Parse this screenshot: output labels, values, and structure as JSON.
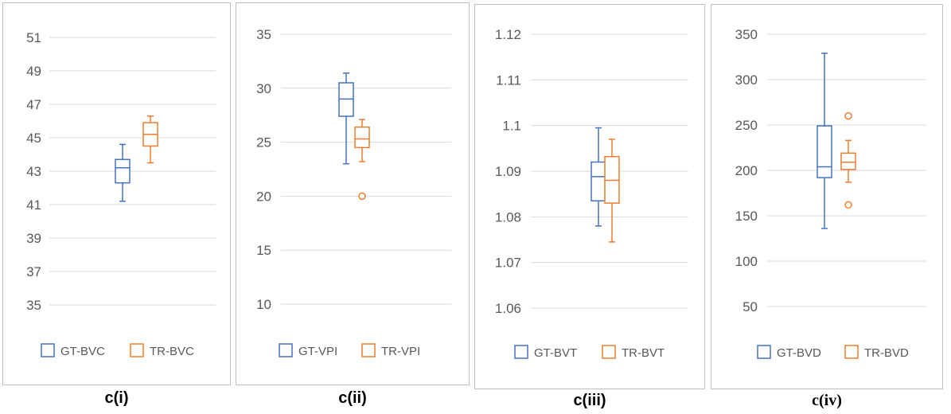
{
  "chart_data": [
    {
      "type": "box",
      "caption": "c(i)",
      "ylim": [
        35,
        51
      ],
      "yticks": [
        35,
        37,
        39,
        41,
        43,
        45,
        47,
        49,
        51
      ],
      "grid": true,
      "legend_position": "bottom",
      "series": [
        {
          "name": "GT-BVC",
          "color": "#4472c4",
          "min": 41.2,
          "q1": 42.3,
          "median": 43.2,
          "q3": 43.7,
          "max": 44.6,
          "outliers": []
        },
        {
          "name": "TR-BVC",
          "color": "#ed7d31",
          "min": 43.5,
          "q1": 44.5,
          "median": 45.2,
          "q3": 45.9,
          "max": 46.3,
          "outliers": []
        }
      ]
    },
    {
      "type": "box",
      "caption": "c(ii)",
      "ylim": [
        10,
        35
      ],
      "yticks": [
        10,
        15,
        20,
        25,
        30,
        35
      ],
      "grid": true,
      "legend_position": "bottom",
      "series": [
        {
          "name": "GT-VPI",
          "color": "#4472c4",
          "min": 23.0,
          "q1": 27.4,
          "median": 29.0,
          "q3": 30.5,
          "max": 31.4,
          "outliers": []
        },
        {
          "name": "TR-VPI",
          "color": "#ed7d31",
          "min": 23.2,
          "q1": 24.5,
          "median": 25.3,
          "q3": 26.4,
          "max": 27.1,
          "outliers": [
            20.0
          ]
        }
      ]
    },
    {
      "type": "box",
      "caption": "c(iii)",
      "ylim": [
        1.06,
        1.12
      ],
      "yticks": [
        "1.06",
        "1.07",
        "1.08",
        "1.09",
        "1.1",
        "1.11",
        "1.12"
      ],
      "grid": true,
      "legend_position": "bottom",
      "series": [
        {
          "name": "GT-BVT",
          "color": "#4472c4",
          "min": 1.078,
          "q1": 1.0835,
          "median": 1.0888,
          "q3": 1.092,
          "max": 1.0995,
          "outliers": []
        },
        {
          "name": "TR-BVT",
          "color": "#ed7d31",
          "min": 1.0745,
          "q1": 1.083,
          "median": 1.088,
          "q3": 1.0932,
          "max": 1.097,
          "outliers": []
        }
      ]
    },
    {
      "type": "box",
      "caption": "c(iv)",
      "ylim": [
        50,
        350
      ],
      "yticks": [
        50,
        100,
        150,
        200,
        250,
        300,
        350
      ],
      "grid": true,
      "legend_position": "bottom",
      "series": [
        {
          "name": "GT-BVD",
          "color": "#4472c4",
          "min": 136,
          "q1": 192,
          "median": 204,
          "q3": 249,
          "max": 329,
          "outliers": []
        },
        {
          "name": "TR-BVD",
          "color": "#ed7d31",
          "min": 187,
          "q1": 201,
          "median": 209,
          "q3": 219,
          "max": 233,
          "outliers": [
            260,
            162
          ]
        }
      ]
    }
  ]
}
